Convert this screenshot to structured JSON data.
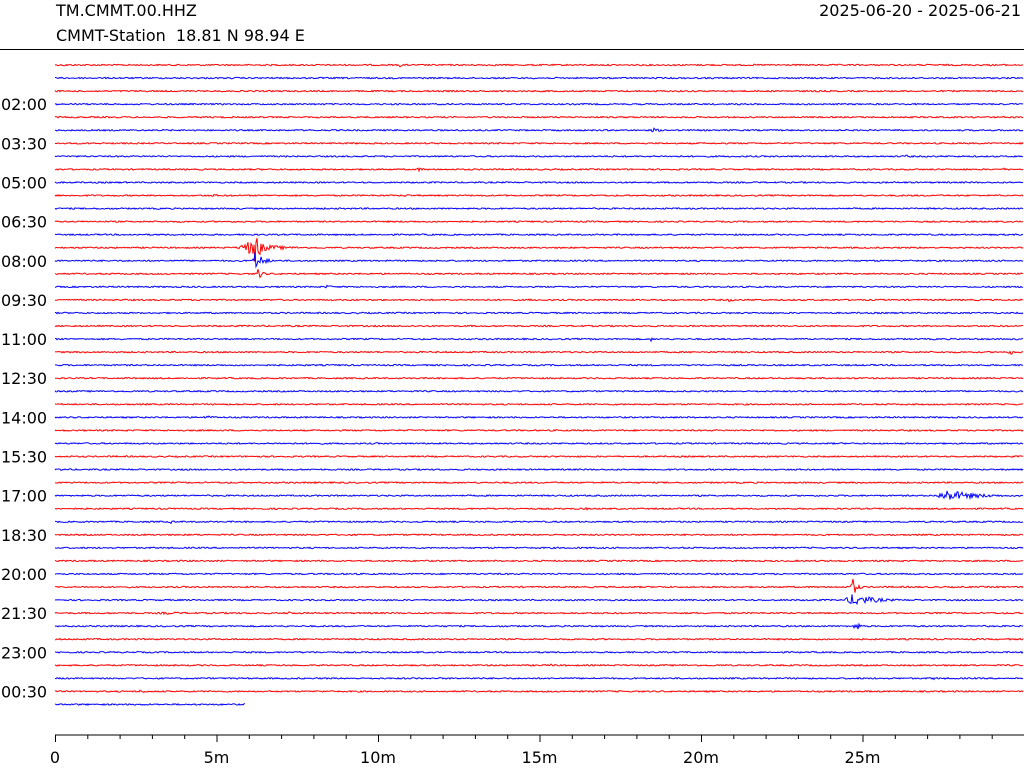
{
  "header": {
    "station_code": "TM.CMMT.00.HHZ",
    "station_info": "CMMT-Station  18.81 N 98.94 E",
    "date_range": "2025-06-20 - 2025-06-21"
  },
  "colors": {
    "trace_a": "#ff0000",
    "trace_b": "#0000ff",
    "axis": "#000000"
  },
  "chart_data": {
    "type": "line",
    "title": "TM.CMMT.00.HHZ",
    "xlabel": "",
    "ylabel": "",
    "x_unit": "minutes",
    "xlim": [
      0,
      30
    ],
    "x_ticks": [
      {
        "value": 0,
        "label": "0"
      },
      {
        "value": 5,
        "label": "5m"
      },
      {
        "value": 10,
        "label": "10m"
      },
      {
        "value": 15,
        "label": "15m"
      },
      {
        "value": 20,
        "label": "20m"
      },
      {
        "value": 25,
        "label": "25m"
      }
    ],
    "y_labels": [
      {
        "row": 3,
        "label": "02:00"
      },
      {
        "row": 6,
        "label": "03:30"
      },
      {
        "row": 9,
        "label": "05:00"
      },
      {
        "row": 12,
        "label": "06:30"
      },
      {
        "row": 15,
        "label": "08:00"
      },
      {
        "row": 18,
        "label": "09:30"
      },
      {
        "row": 21,
        "label": "11:00"
      },
      {
        "row": 24,
        "label": "12:30"
      },
      {
        "row": 27,
        "label": "14:00"
      },
      {
        "row": 30,
        "label": "15:30"
      },
      {
        "row": 33,
        "label": "17:00"
      },
      {
        "row": 36,
        "label": "18:30"
      },
      {
        "row": 39,
        "label": "20:00"
      },
      {
        "row": 42,
        "label": "21:30"
      },
      {
        "row": 45,
        "label": "23:00"
      },
      {
        "row": 48,
        "label": "00:30"
      }
    ],
    "trace_count": 50,
    "last_trace_end_minutes": 5.9,
    "noise_amplitude": 0.25,
    "events": [
      {
        "row": 0,
        "start": 0.2,
        "peak": 0.5,
        "duration": 0.6
      },
      {
        "row": 0,
        "start": 10.6,
        "peak": 0.8,
        "duration": 0.4
      },
      {
        "row": 5,
        "start": 18.4,
        "peak": 0.8,
        "duration": 0.8
      },
      {
        "row": 7,
        "start": 26.2,
        "peak": 0.5,
        "duration": 1.0
      },
      {
        "row": 8,
        "start": 11.1,
        "peak": 0.7,
        "duration": 0.8
      },
      {
        "row": 8,
        "start": 29.3,
        "peak": 0.5,
        "duration": 0.6
      },
      {
        "row": 10,
        "start": 4.8,
        "peak": 0.5,
        "duration": 0.8
      },
      {
        "row": 10,
        "start": 10.7,
        "peak": 0.5,
        "duration": 1.0
      },
      {
        "row": 14,
        "start": 5.6,
        "peak": 2.2,
        "duration": 2.4
      },
      {
        "row": 14,
        "start": 6.1,
        "peak": 7.0,
        "duration": 0.5
      },
      {
        "row": 15,
        "start": 6.1,
        "peak": 3.5,
        "duration": 0.7
      },
      {
        "row": 16,
        "start": 6.2,
        "peak": 2.0,
        "duration": 0.5
      },
      {
        "row": 17,
        "start": 8.3,
        "peak": 0.6,
        "duration": 0.8
      },
      {
        "row": 18,
        "start": 14.6,
        "peak": 0.6,
        "duration": 0.4
      },
      {
        "row": 18,
        "start": 20.8,
        "peak": 0.8,
        "duration": 0.4
      },
      {
        "row": 21,
        "start": 18.4,
        "peak": 0.8,
        "duration": 0.3
      },
      {
        "row": 22,
        "start": 29.5,
        "peak": 1.0,
        "duration": 0.5
      },
      {
        "row": 27,
        "start": 4.5,
        "peak": 0.6,
        "duration": 1.2
      },
      {
        "row": 31,
        "start": 0.0,
        "peak": 0.6,
        "duration": 0.6
      },
      {
        "row": 32,
        "start": 19.1,
        "peak": 0.5,
        "duration": 0.3
      },
      {
        "row": 33,
        "start": 27.2,
        "peak": 2.0,
        "duration": 2.8
      },
      {
        "row": 34,
        "start": 16.4,
        "peak": 0.5,
        "duration": 0.3
      },
      {
        "row": 35,
        "start": 3.5,
        "peak": 0.6,
        "duration": 0.6
      },
      {
        "row": 40,
        "start": 24.6,
        "peak": 4.5,
        "duration": 0.4
      },
      {
        "row": 41,
        "start": 24.4,
        "peak": 2.2,
        "duration": 2.0
      },
      {
        "row": 42,
        "start": 3.0,
        "peak": 0.5,
        "duration": 3.0
      },
      {
        "row": 42,
        "start": 7.2,
        "peak": 1.0,
        "duration": 0.4
      },
      {
        "row": 43,
        "start": 24.7,
        "peak": 2.5,
        "duration": 0.4
      },
      {
        "row": 46,
        "start": 15.3,
        "peak": 0.6,
        "duration": 0.5
      },
      {
        "row": 47,
        "start": 27.0,
        "peak": 0.5,
        "duration": 1.2
      },
      {
        "row": 48,
        "start": 2.4,
        "peak": 0.5,
        "duration": 1.5
      }
    ]
  }
}
